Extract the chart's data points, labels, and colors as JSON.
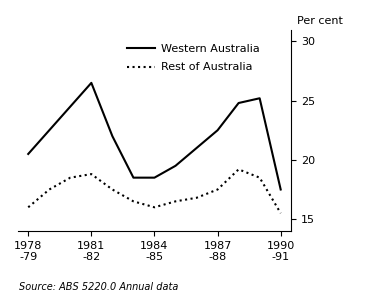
{
  "x_numeric": [
    0,
    1,
    2,
    3,
    4,
    5,
    6,
    7,
    8,
    9,
    10,
    11,
    12
  ],
  "wa_values": [
    20.5,
    22.5,
    24.5,
    26.5,
    22.0,
    18.5,
    18.5,
    19.5,
    21.0,
    22.5,
    24.8,
    25.2,
    17.5
  ],
  "roa_values": [
    16.0,
    17.5,
    18.5,
    18.8,
    17.5,
    16.5,
    16.0,
    16.5,
    16.8,
    17.5,
    19.2,
    18.5,
    15.5
  ],
  "x_ticks": [
    0,
    3,
    6,
    9,
    12
  ],
  "x_tick_labels": [
    "1978\n-79",
    "1981\n-82",
    "1984\n-85",
    "1987\n-88",
    "1990\n-91"
  ],
  "ylim": [
    14,
    31
  ],
  "yticks": [
    15,
    20,
    25,
    30
  ],
  "ylabel": "Per cent",
  "wa_label": "Western Australia",
  "roa_label": "Rest of Australia",
  "source_text": "Source: ABS 5220.0 Annual data",
  "line_color": "#000000",
  "bg_color": "#ffffff"
}
